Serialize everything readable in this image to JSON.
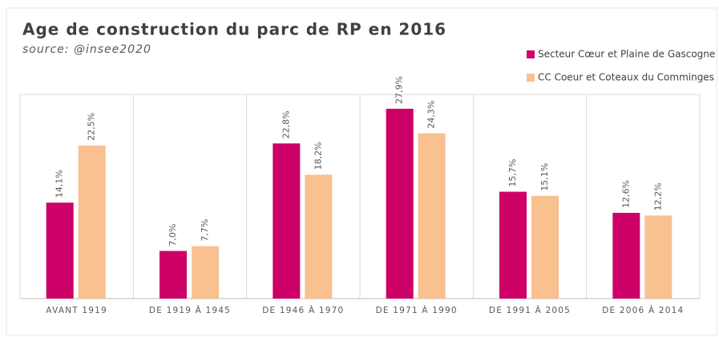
{
  "chart_data": {
    "type": "bar",
    "title": "Age de construction du parc de RP en 2016",
    "subtitle": "source: @insee2020",
    "categories": [
      "AVANT 1919",
      "DE 1919 À 1945",
      "DE 1946 À 1970",
      "DE 1971 À 1990",
      "DE 1991 À 2005",
      "DE 2006 À 2014"
    ],
    "series": [
      {
        "name": "Secteur Cœur et Plaine de Gascogne",
        "color": "#cc0066",
        "values": [
          14.1,
          7.0,
          22.8,
          27.9,
          15.7,
          12.6
        ],
        "value_labels": [
          "14,1%",
          "7,0%",
          "22,8%",
          "27,9%",
          "15,7%",
          "12,6%"
        ]
      },
      {
        "name": "CC Coeur et Coteaux du Comminges",
        "color": "#f9c090",
        "values": [
          22.5,
          7.7,
          18.2,
          24.3,
          15.1,
          12.2
        ],
        "value_labels": [
          "22,5%",
          "7,7%",
          "18,2%",
          "24,3%",
          "15,1%",
          "12,2%"
        ]
      }
    ],
    "ylim": [
      0,
      30
    ],
    "legend": "top-right"
  }
}
